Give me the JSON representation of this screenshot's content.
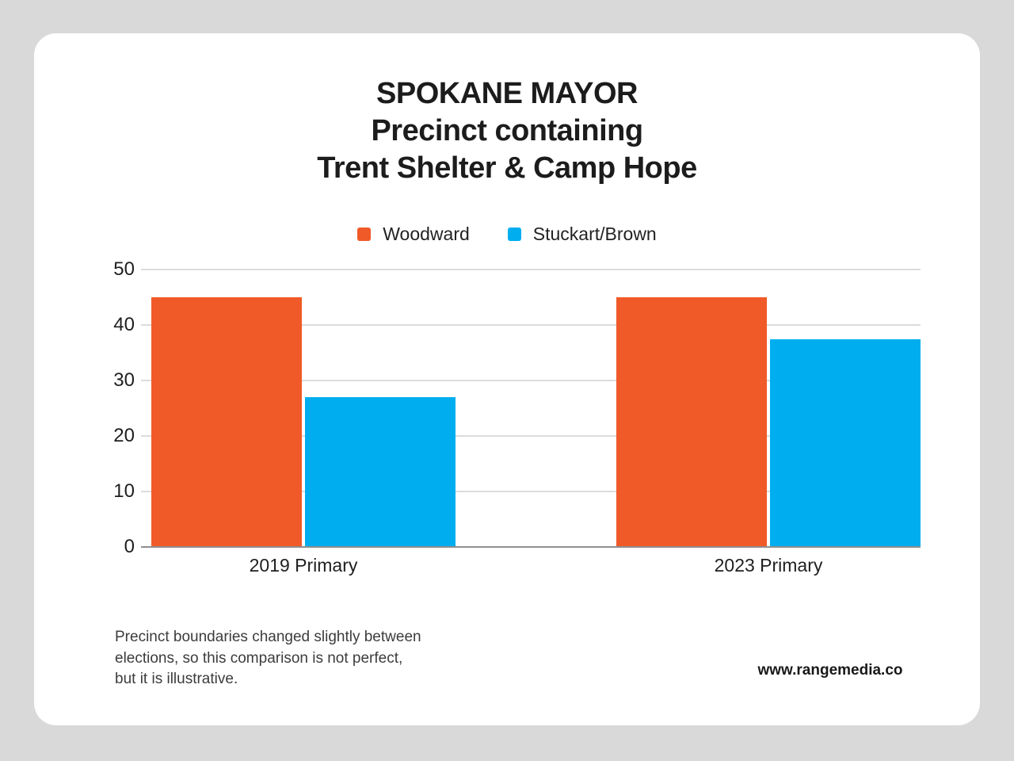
{
  "card": {
    "title_lines": [
      "SPOKANE MAYOR",
      "Precinct containing",
      "Trent Shelter & Camp Hope"
    ],
    "footnote_lines": [
      "Precinct boundaries changed slightly between",
      "elections, so this comparison is not perfect,",
      "but it is illustrative."
    ],
    "credit": "www.rangemedia.co"
  },
  "chart_data": {
    "type": "bar",
    "title": "SPOKANE MAYOR — Precinct containing Trent Shelter & Camp Hope",
    "categories": [
      "2019 Primary",
      "2023 Primary"
    ],
    "series": [
      {
        "name": "Woodward",
        "color": "#F05A28",
        "values": [
          45,
          45
        ]
      },
      {
        "name": "Stuckart/Brown",
        "color": "#00AEEF",
        "values": [
          27,
          37.4
        ]
      }
    ],
    "xlabel": "",
    "ylabel": "",
    "ylim": [
      0,
      50
    ],
    "yticks": [
      0,
      10,
      20,
      30,
      40,
      50
    ],
    "grid": true,
    "legend_position": "top"
  },
  "colors": {
    "page_background": "#D9D9D9",
    "card_background": "#FFFFFF",
    "gridline": "#DCDCDC",
    "axis_line": "#8F8F8F",
    "title_text": "#1C1C1C",
    "body_text": "#1F1F1F"
  }
}
